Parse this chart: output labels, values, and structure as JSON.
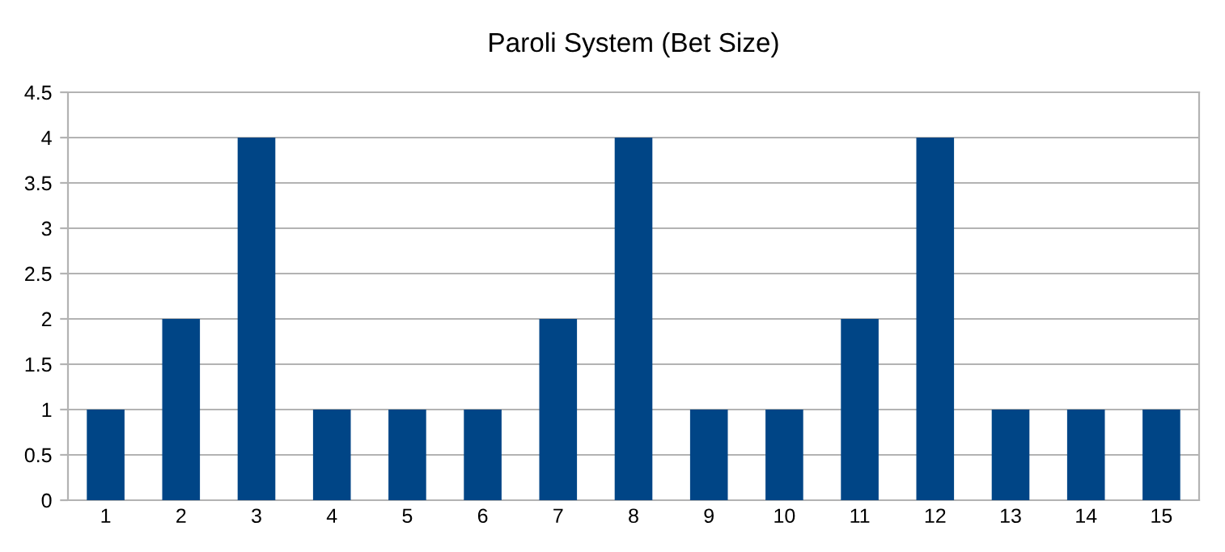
{
  "chart_data": {
    "type": "bar",
    "title": "Paroli System (Bet Size)",
    "categories": [
      "1",
      "2",
      "3",
      "4",
      "5",
      "6",
      "7",
      "8",
      "9",
      "10",
      "11",
      "12",
      "13",
      "14",
      "15"
    ],
    "values": [
      1,
      2,
      4,
      1,
      1,
      1,
      2,
      4,
      1,
      1,
      2,
      4,
      1,
      1,
      1
    ],
    "color": "#004586",
    "ylim": [
      0,
      4.5
    ],
    "yticks": [
      0,
      0.5,
      1,
      1.5,
      2,
      2.5,
      3,
      3.5,
      4,
      4.5
    ],
    "grid": "y",
    "legend": false
  }
}
